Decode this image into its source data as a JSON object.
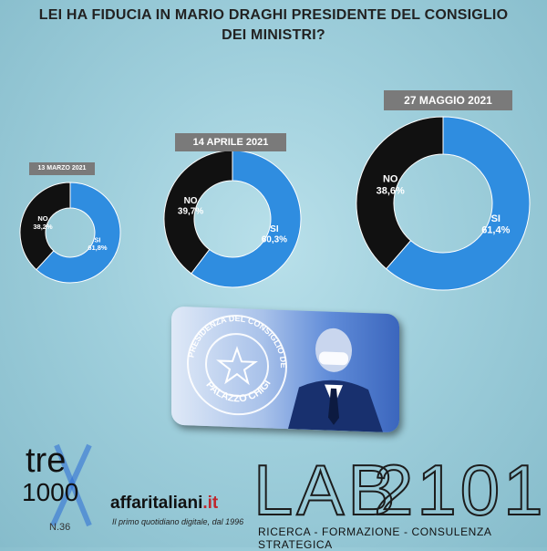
{
  "chart_data": [
    {
      "type": "pie",
      "subtype": "donut",
      "date_label": "13 MARZO 2021",
      "slices": [
        {
          "label": "SI",
          "value": 61.8,
          "value_text": "61,8%",
          "color": "#2f8de0"
        },
        {
          "label": "NO",
          "value": 38.2,
          "value_text": "38,2%",
          "color": "#111111"
        }
      ]
    },
    {
      "type": "pie",
      "subtype": "donut",
      "date_label": "14 APRILE 2021",
      "slices": [
        {
          "label": "SI",
          "value": 60.3,
          "value_text": "60,3%",
          "color": "#2f8de0"
        },
        {
          "label": "NO",
          "value": 39.7,
          "value_text": "39,7%",
          "color": "#111111"
        }
      ]
    },
    {
      "type": "pie",
      "subtype": "donut",
      "date_label": "27 MAGGIO 2021",
      "slices": [
        {
          "label": "SI",
          "value": 61.4,
          "value_text": "61,4%",
          "color": "#2f8de0"
        },
        {
          "label": "NO",
          "value": 38.6,
          "value_text": "38,6%",
          "color": "#111111"
        }
      ]
    }
  ],
  "title_lines": [
    "LEI HA FIDUCIA IN MARIO DRAGHI PRESIDENTE DEL CONSIGLIO",
    "DEI MINISTRI?"
  ],
  "photo": {
    "seal_top": "PRESIDENZA DEL CONSIGLIO DEI MINISTRI",
    "seal_bottom": "PALAZZO CHIGI"
  },
  "logos": {
    "tre": "tre",
    "tre_number": "1000",
    "tre_issue": "N.36",
    "affaritaliani_main": "affaritaliani",
    "affaritaliani_tld": ".it",
    "affaritaliani_tagline": "Il primo quotidiano digitale, dal 1996",
    "lab": "LAB",
    "lab_number": "2101",
    "lab_tagline": "RICERCA - FORMAZIONE - CONSULENZA STRATEGICA"
  },
  "colors": {
    "yes": "#2f8de0",
    "no": "#111111",
    "label_bg": "#7a7a7a"
  }
}
